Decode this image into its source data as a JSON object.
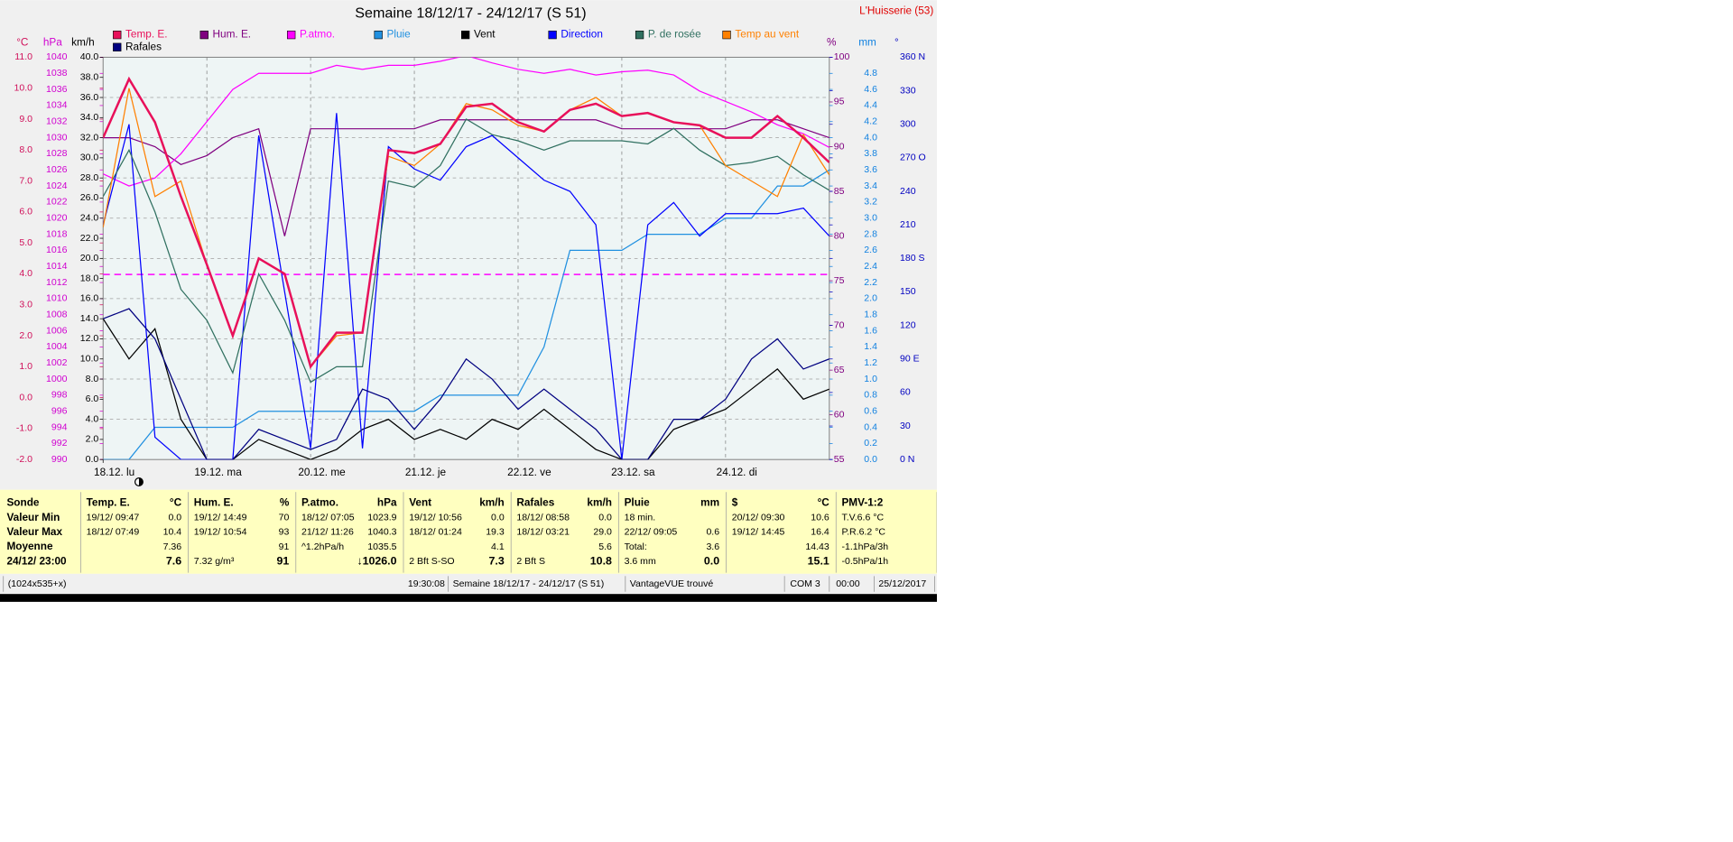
{
  "chart_data": {
    "type": "line",
    "title": "Semaine 18/12/17 - 24/12/17 (S 51)",
    "location": "L'Huisserie (53)",
    "xlim": [
      0,
      168
    ],
    "xticks": [
      {
        "value": 0,
        "label": "18.12.  lu"
      },
      {
        "value": 24,
        "label": "19.12.  ma"
      },
      {
        "value": 48,
        "label": "20.12.  me"
      },
      {
        "value": 72,
        "label": "21.12.  je"
      },
      {
        "value": 96,
        "label": "22.12.  ve"
      },
      {
        "value": 120,
        "label": "23.12.  sa"
      },
      {
        "value": 144,
        "label": "24.12.  di"
      }
    ],
    "grid": true,
    "y_axes": [
      {
        "unit": "°C",
        "color": "#d0105a",
        "ylim": [
          -2,
          11
        ],
        "yticks": [
          {
            "value": 11,
            "label": "11.0"
          },
          {
            "value": 10,
            "label": "10.0"
          },
          {
            "value": 9,
            "label": "9.0"
          },
          {
            "value": 8,
            "label": "8.0"
          },
          {
            "value": 7,
            "label": "7.0"
          },
          {
            "value": 6,
            "label": "6.0"
          },
          {
            "value": 5,
            "label": "5.0"
          },
          {
            "value": 4,
            "label": "4.0"
          },
          {
            "value": 3,
            "label": "3.0"
          },
          {
            "value": 2,
            "label": "2.0"
          },
          {
            "value": 1,
            "label": "1.0"
          },
          {
            "value": 0,
            "label": "0.0"
          },
          {
            "value": -1,
            "label": "-1.0"
          },
          {
            "value": -2,
            "label": "-2.0"
          }
        ]
      },
      {
        "unit": "hPa",
        "color": "#d000d0",
        "ylim": [
          990,
          1040
        ],
        "yticks": [
          1040,
          1038,
          1036,
          1034,
          1032,
          1030,
          1028,
          1026,
          1024,
          1022,
          1020,
          1018,
          1016,
          1014,
          1012,
          1010,
          1008,
          1006,
          1004,
          1002,
          1000,
          998,
          996,
          994,
          992,
          990
        ]
      },
      {
        "unit": "km/h",
        "color": "#000000",
        "ylim": [
          0,
          40
        ],
        "yticks": [
          {
            "value": 40,
            "label": "40.0"
          },
          {
            "value": 38,
            "label": "38.0"
          },
          {
            "value": 36,
            "label": "36.0"
          },
          {
            "value": 34,
            "label": "34.0"
          },
          {
            "value": 32,
            "label": "32.0"
          },
          {
            "value": 30,
            "label": "30.0"
          },
          {
            "value": 28,
            "label": "28.0"
          },
          {
            "value": 26,
            "label": "26.0"
          },
          {
            "value": 24,
            "label": "24.0"
          },
          {
            "value": 22,
            "label": "22.0"
          },
          {
            "value": 20,
            "label": "20.0"
          },
          {
            "value": 18,
            "label": "18.0"
          },
          {
            "value": 16,
            "label": "16.0"
          },
          {
            "value": 14,
            "label": "14.0"
          },
          {
            "value": 12,
            "label": "12.0"
          },
          {
            "value": 10,
            "label": "10.0"
          },
          {
            "value": 8,
            "label": "8.0"
          },
          {
            "value": 6,
            "label": "6.0"
          },
          {
            "value": 4,
            "label": "4.0"
          },
          {
            "value": 2,
            "label": "2.0"
          },
          {
            "value": 0,
            "label": "0.0"
          }
        ]
      },
      {
        "unit": "%",
        "color": "#800080",
        "ylim": [
          55,
          100
        ],
        "yticks": [
          100,
          95,
          90,
          85,
          80,
          75,
          70,
          65,
          60,
          55
        ]
      },
      {
        "unit": "mm",
        "color": "#1080e0",
        "ylim": [
          0,
          5
        ],
        "yticks": [
          {
            "value": 4.8,
            "label": "4.8"
          },
          {
            "value": 4.6,
            "label": "4.6"
          },
          {
            "value": 4.4,
            "label": "4.4"
          },
          {
            "value": 4.2,
            "label": "4.2"
          },
          {
            "value": 4,
            "label": "4.0"
          },
          {
            "value": 3.8,
            "label": "3.8"
          },
          {
            "value": 3.6,
            "label": "3.6"
          },
          {
            "value": 3.4,
            "label": "3.4"
          },
          {
            "value": 3.2,
            "label": "3.2"
          },
          {
            "value": 3,
            "label": "3.0"
          },
          {
            "value": 2.8,
            "label": "2.8"
          },
          {
            "value": 2.6,
            "label": "2.6"
          },
          {
            "value": 2.4,
            "label": "2.4"
          },
          {
            "value": 2.2,
            "label": "2.2"
          },
          {
            "value": 2,
            "label": "2.0"
          },
          {
            "value": 1.8,
            "label": "1.8"
          },
          {
            "value": 1.6,
            "label": "1.6"
          },
          {
            "value": 1.4,
            "label": "1.4"
          },
          {
            "value": 1.2,
            "label": "1.2"
          },
          {
            "value": 1,
            "label": "1.0"
          },
          {
            "value": 0.8,
            "label": "0.8"
          },
          {
            "value": 0.6,
            "label": "0.6"
          },
          {
            "value": 0.4,
            "label": "0.4"
          },
          {
            "value": 0.2,
            "label": "0.2"
          },
          {
            "value": 0,
            "label": "0.0"
          }
        ]
      },
      {
        "unit": "°",
        "color": "#0000c0",
        "ylim": [
          0,
          360
        ],
        "yticks": [
          {
            "value": 360,
            "label": "360 N"
          },
          330,
          300,
          {
            "value": 270,
            "label": "270 O"
          },
          240,
          210,
          {
            "value": 180,
            "label": "180 S"
          },
          150,
          120,
          {
            "value": 90,
            "label": "90  E"
          },
          60,
          30,
          {
            "value": 0,
            "label": "0   N"
          }
        ]
      }
    ],
    "reference_lines": [
      {
        "axis": 1,
        "value": 1013,
        "color": "#ff00ff"
      }
    ],
    "x": [
      0,
      6,
      12,
      18,
      24,
      30,
      36,
      42,
      48,
      54,
      60,
      66,
      72,
      78,
      84,
      90,
      96,
      102,
      108,
      114,
      120,
      126,
      132,
      138,
      144,
      150,
      156,
      162,
      168
    ],
    "series": [
      {
        "name": "Temp. E.",
        "color": "#e8105a",
        "axis": 0,
        "width": 2,
        "values": [
          8.4,
          10.3,
          8.9,
          6.5,
          4.3,
          2.0,
          4.5,
          4.0,
          1.0,
          2.1,
          2.1,
          8.0,
          7.9,
          8.2,
          9.4,
          9.5,
          8.9,
          8.6,
          9.3,
          9.5,
          9.1,
          9.2,
          8.9,
          8.8,
          8.4,
          8.4,
          9.1,
          8.4,
          7.6
        ]
      },
      {
        "name": "Hum. E.",
        "color": "#800080",
        "axis": 3,
        "width": 1,
        "values": [
          91,
          91,
          90,
          88,
          89,
          91,
          92,
          80,
          92,
          92,
          92,
          92,
          92,
          93,
          93,
          93,
          93,
          93,
          93,
          93,
          92,
          92,
          92,
          92,
          92,
          93,
          93,
          92,
          91
        ]
      },
      {
        "name": "P.atmo.",
        "color": "#ff00ff",
        "axis": 1,
        "width": 1,
        "values": [
          1025.5,
          1024,
          1025,
          1028,
          1032,
          1036,
          1038,
          1038,
          1038,
          1039,
          1038.5,
          1039,
          1039,
          1039.5,
          1040.2,
          1039.3,
          1038.5,
          1038,
          1038.5,
          1037.8,
          1038.2,
          1038.4,
          1037.8,
          1035.8,
          1034.5,
          1033.2,
          1031.6,
          1030.5,
          1028.8
        ]
      },
      {
        "name": "Pluie",
        "color": "#2090e0",
        "axis": 4,
        "width": 1,
        "values": [
          0,
          0,
          0.4,
          0.4,
          0.4,
          0.4,
          0.6,
          0.6,
          0.6,
          0.6,
          0.6,
          0.6,
          0.6,
          0.8,
          0.8,
          0.8,
          0.8,
          1.4,
          2.6,
          2.6,
          2.6,
          2.8,
          2.8,
          2.8,
          3.0,
          3.0,
          3.4,
          3.4,
          3.6
        ]
      },
      {
        "name": "Vent",
        "color": "#000000",
        "axis": 2,
        "width": 1,
        "values": [
          14,
          10,
          13,
          4,
          0,
          0,
          2,
          1,
          0,
          1,
          3,
          4,
          2,
          3,
          2,
          4,
          3,
          5,
          3,
          1,
          0,
          0,
          3,
          4,
          5,
          7,
          9,
          6,
          7
        ]
      },
      {
        "name": "Direction",
        "color": "#0000ff",
        "axis": 5,
        "width": 1,
        "values": [
          210,
          300,
          20,
          0,
          0,
          0,
          290,
          150,
          10,
          310,
          10,
          280,
          260,
          250,
          280,
          290,
          270,
          250,
          240,
          210,
          0,
          210,
          230,
          200,
          220,
          220,
          220,
          225,
          200
        ]
      },
      {
        "name": "P. de rosée",
        "color": "#307060",
        "axis": 0,
        "width": 1,
        "values": [
          6.5,
          8.0,
          6.0,
          3.5,
          2.5,
          0.8,
          4.0,
          2.5,
          0.5,
          1.0,
          1.0,
          7.0,
          6.8,
          7.5,
          9.0,
          8.5,
          8.3,
          8.0,
          8.3,
          8.3,
          8.3,
          8.2,
          8.7,
          8.0,
          7.5,
          7.6,
          7.8,
          7.2,
          6.7
        ]
      },
      {
        "name": "Temp au vent",
        "color": "#ff8000",
        "axis": 0,
        "width": 1,
        "values": [
          5.5,
          10.0,
          6.5,
          7.0,
          4.3,
          2.0,
          4.5,
          4.0,
          1.0,
          2.0,
          2.1,
          7.8,
          7.5,
          8.2,
          9.5,
          9.3,
          8.8,
          8.6,
          9.3,
          9.7,
          9.1,
          9.2,
          8.9,
          8.8,
          7.5,
          7.0,
          6.5,
          8.5,
          7.2
        ]
      },
      {
        "name": "Rafales",
        "color": "#000080",
        "axis": 2,
        "width": 1,
        "values": [
          14,
          15,
          12,
          6,
          0,
          0,
          3,
          2,
          1,
          2,
          7,
          6,
          3,
          6,
          10,
          8,
          5,
          7,
          5,
          3,
          0,
          0,
          4,
          4,
          6,
          10,
          12,
          9,
          10
        ]
      }
    ]
  },
  "table": {
    "corner": "Sonde",
    "row_labels": [
      "Valeur Min",
      "Valeur Max",
      "Moyenne",
      "24/12/  23:00"
    ],
    "columns": [
      {
        "header": "Temp. E.",
        "unit": "°C",
        "cells": [
          [
            "19/12/  09:47",
            "0.0"
          ],
          [
            "18/12/  07:49",
            "10.4"
          ],
          [
            null,
            "7.36"
          ],
          [
            null,
            "7.6"
          ]
        ]
      },
      {
        "header": "Hum. E.",
        "unit": "%",
        "cells": [
          [
            "19/12/  14:49",
            "70"
          ],
          [
            "19/12/  10:54",
            "93"
          ],
          [
            null,
            "91"
          ],
          [
            "7.32 g/m³",
            "91"
          ]
        ]
      },
      {
        "header": "P.atmo.",
        "unit": "hPa",
        "cells": [
          [
            "18/12/  07:05",
            "1023.9"
          ],
          [
            "21/12/  11:26",
            "1040.3"
          ],
          [
            "^1.2hPa/h",
            "1035.5"
          ],
          [
            null,
            "↓1026.0"
          ]
        ]
      },
      {
        "header": "Vent",
        "unit": "km/h",
        "cells": [
          [
            "19/12/  10:56",
            "0.0"
          ],
          [
            "18/12/  01:24",
            "19.3"
          ],
          [
            null,
            "4.1"
          ],
          [
            "2 Bft S-SO",
            "7.3"
          ]
        ]
      },
      {
        "header": "Rafales",
        "unit": "km/h",
        "cells": [
          [
            "18/12/  08:58",
            "0.0"
          ],
          [
            "18/12/  03:21",
            "29.0"
          ],
          [
            null,
            "5.6"
          ],
          [
            "2 Bft S",
            "10.8"
          ]
        ]
      },
      {
        "header": "Pluie",
        "unit": "mm",
        "cells": [
          [
            "18 min.",
            null
          ],
          [
            "22/12/  09:05",
            "0.6"
          ],
          [
            "Total:",
            "3.6"
          ],
          [
            "3.6 mm",
            "0.0"
          ]
        ]
      },
      {
        "header": "$",
        "unit": "°C",
        "cells": [
          [
            "20/12/  09:30",
            "10.6"
          ],
          [
            "19/12/  14:45",
            "16.4"
          ],
          [
            null,
            "14.43"
          ],
          [
            null,
            "15.1"
          ]
        ]
      },
      {
        "header": "PMV-1:2",
        "unit": null,
        "cells": [
          [
            "T.V.6.6 °C",
            null
          ],
          [
            "P.R.6.2 °C",
            null
          ],
          [
            "-1.1hPa/3h",
            null
          ],
          [
            "-0.5hPa/1h",
            null
          ]
        ]
      }
    ]
  },
  "status_bar": [
    "(1024x535+x)",
    "19:30:08",
    "Semaine 18/12/17 - 24/12/17 (S 51)",
    "VantageVUE trouvé",
    "COM 3",
    "00:00",
    "25/12/2017"
  ]
}
